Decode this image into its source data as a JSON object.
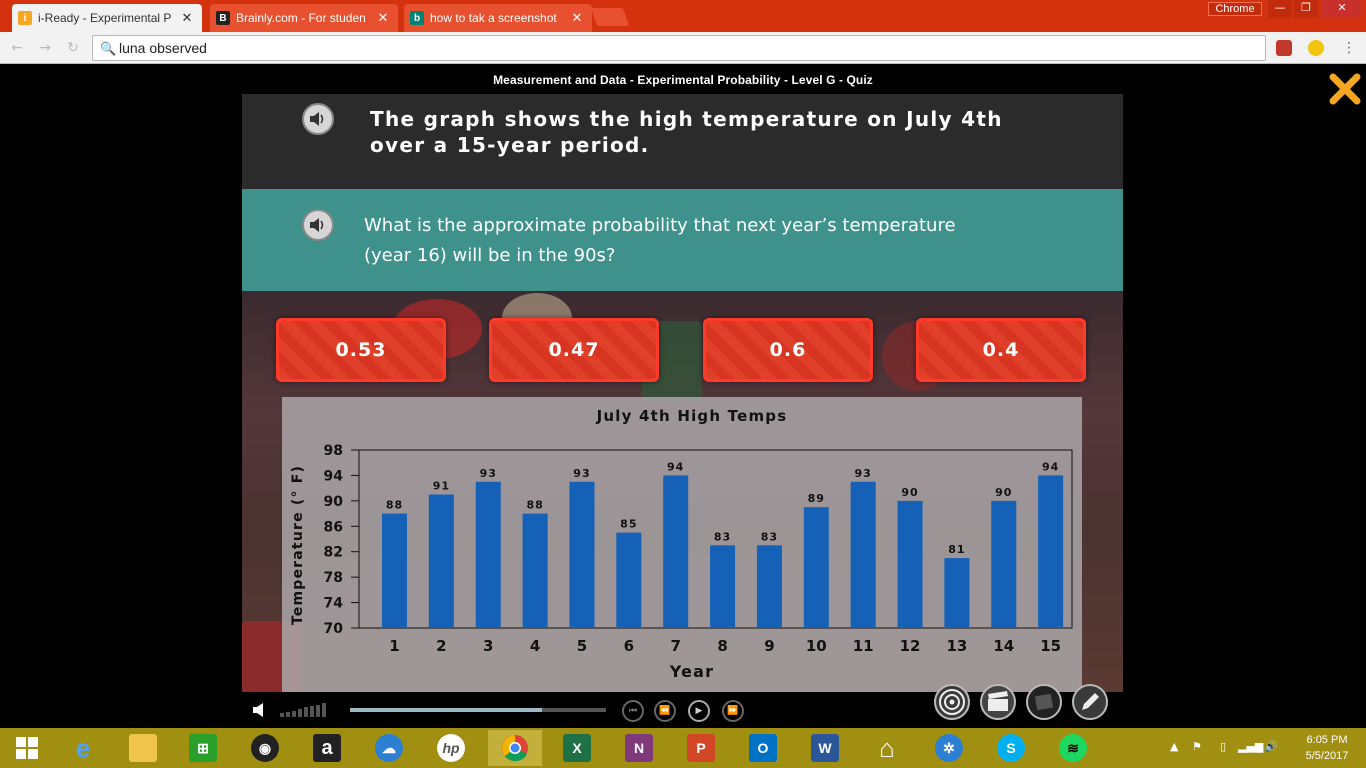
{
  "browser": {
    "tabs": [
      {
        "title": "i-Ready - Experimental P",
        "favicon_color": "#f5a623",
        "favicon": "i"
      },
      {
        "title": "Brainly.com - For studen",
        "favicon_color": "#222222",
        "favicon": "B"
      },
      {
        "title": "how to tak a screenshot",
        "favicon_color": "#008373",
        "favicon": "b"
      }
    ],
    "chrome_label": "Chrome",
    "window_controls": {
      "minimize": "—",
      "maximize": "❐",
      "close": "✕"
    },
    "address": "luna observed",
    "colors": {
      "frame": "#d4310f",
      "tab": "#e8512f"
    }
  },
  "quiz": {
    "header": "Measurement and Data - Experimental Probability - Level G - Quiz",
    "prompt": "The graph shows the high temperature on July 4th over a 15-year period.",
    "question": "What is the approximate probability that next year’s temperature (year 16) will be in the 90s?",
    "answers": [
      "0.53",
      "0.47",
      "0.6",
      "0.4"
    ],
    "colors": {
      "prompt_bg": "#2b2b2b",
      "question_bg": "#3f918b",
      "answer_bg": "#e0402a",
      "close": "#f5a623"
    }
  },
  "chart_data": {
    "type": "bar",
    "title": "July 4th High Temps",
    "xlabel": "Year",
    "ylabel": "Temperature (° F)",
    "categories": [
      "1",
      "2",
      "3",
      "4",
      "5",
      "6",
      "7",
      "8",
      "9",
      "10",
      "11",
      "12",
      "13",
      "14",
      "15"
    ],
    "values": [
      88,
      91,
      93,
      88,
      93,
      85,
      94,
      83,
      83,
      89,
      93,
      90,
      81,
      90,
      94
    ],
    "yticks": [
      "70",
      "74",
      "78",
      "82",
      "86",
      "90",
      "94",
      "98"
    ],
    "ylim": [
      70,
      98
    ],
    "bar_color": "#1561b8",
    "grid": false
  },
  "player": {
    "progress": 0.75,
    "icons": [
      "volume-icon",
      "skip-back-icon",
      "rewind-icon",
      "play-icon",
      "fast-forward-icon",
      "target-icon",
      "clapboard-icon",
      "notebook-icon",
      "pencil-icon"
    ]
  },
  "taskbar": {
    "apps": [
      "windows",
      "edge",
      "file-explorer",
      "store",
      "media",
      "amazon",
      "onedrive",
      "hp",
      "chrome",
      "excel",
      "onenote",
      "powerpoint",
      "outlook",
      "word",
      "home",
      "network",
      "skype",
      "spotify"
    ],
    "time": "6:05 PM",
    "date": "5/5/2017"
  }
}
